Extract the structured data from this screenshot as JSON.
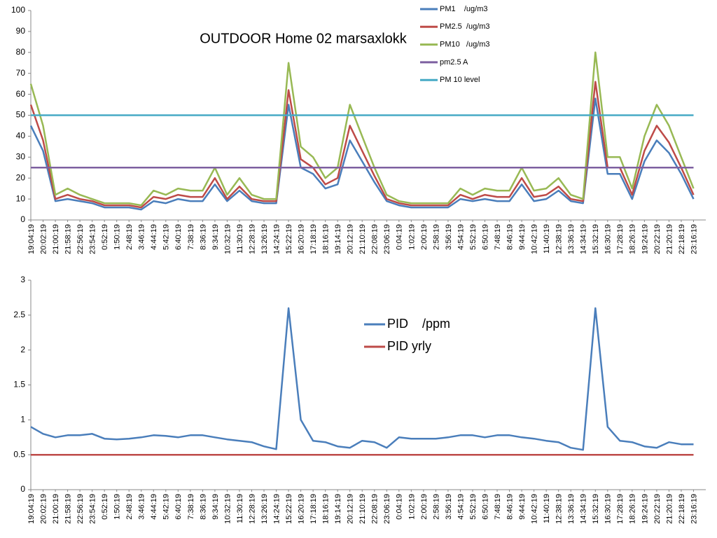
{
  "chart_data": [
    {
      "type": "line",
      "title": "OUTDOOR Home 02 marsaxlokk",
      "categories": [
        "19:04:19",
        "20:02:19",
        "21:00:19",
        "21:58:19",
        "22:56:19",
        "23:54:19",
        "0:52:19",
        "1:50:19",
        "2:48:19",
        "3:46:19",
        "4:44:19",
        "5:42:19",
        "6:40:19",
        "7:38:19",
        "8:36:19",
        "9:34:19",
        "10:32:19",
        "11:30:19",
        "12:28:19",
        "13:26:19",
        "14:24:19",
        "15:22:19",
        "16:20:19",
        "17:18:19",
        "18:16:19",
        "19:14:19",
        "20:12:19",
        "21:10:19",
        "22:08:19",
        "23:06:19",
        "0:04:19",
        "1:02:19",
        "2:00:19",
        "2:58:19",
        "3:56:19",
        "4:54:19",
        "5:52:19",
        "6:50:19",
        "7:48:19",
        "8:46:19",
        "9:44:19",
        "10:42:19",
        "11:40:19",
        "12:38:19",
        "13:36:19",
        "14:34:19",
        "15:32:19",
        "16:30:19",
        "17:28:19",
        "18:26:19",
        "19:24:19",
        "20:22:19",
        "21:20:19",
        "22:18:19",
        "23:16:19"
      ],
      "series": [
        {
          "name": "PM1    /ug/m3",
          "color": "#4a7ebb",
          "values": [
            45,
            33,
            9,
            10,
            9,
            8,
            6,
            6,
            6,
            5,
            9,
            8,
            10,
            9,
            9,
            17,
            9,
            14,
            9,
            8,
            8,
            55,
            25,
            22,
            15,
            17,
            38,
            28,
            18,
            9,
            7,
            6,
            6,
            6,
            6,
            10,
            9,
            10,
            9,
            9,
            17,
            9,
            10,
            14,
            9,
            8,
            58,
            22,
            22,
            10,
            28,
            38,
            32,
            22,
            10
          ]
        },
        {
          "name": "PM2.5  /ug/m3",
          "color": "#be4b48",
          "values": [
            55,
            38,
            10,
            12,
            10,
            9,
            7,
            7,
            7,
            6,
            11,
            10,
            12,
            11,
            11,
            20,
            10,
            16,
            10,
            9,
            9,
            62,
            29,
            25,
            17,
            20,
            45,
            33,
            21,
            10,
            8,
            7,
            7,
            7,
            7,
            12,
            10,
            12,
            11,
            11,
            20,
            11,
            12,
            16,
            10,
            9,
            66,
            25,
            25,
            12,
            33,
            45,
            37,
            25,
            12
          ]
        },
        {
          "name": "PM10   /ug/m3",
          "color": "#98b954",
          "values": [
            65,
            45,
            12,
            15,
            12,
            10,
            8,
            8,
            8,
            7,
            14,
            12,
            15,
            14,
            14,
            25,
            12,
            20,
            12,
            10,
            10,
            75,
            35,
            30,
            20,
            25,
            55,
            40,
            25,
            12,
            9,
            8,
            8,
            8,
            8,
            15,
            12,
            15,
            14,
            14,
            25,
            14,
            15,
            20,
            12,
            10,
            80,
            30,
            30,
            15,
            40,
            55,
            45,
            30,
            15
          ]
        },
        {
          "name": "pm2.5 A",
          "color": "#7d60a0",
          "values": [
            25,
            25,
            25,
            25,
            25,
            25,
            25,
            25,
            25,
            25,
            25,
            25,
            25,
            25,
            25,
            25,
            25,
            25,
            25,
            25,
            25,
            25,
            25,
            25,
            25,
            25,
            25,
            25,
            25,
            25,
            25,
            25,
            25,
            25,
            25,
            25,
            25,
            25,
            25,
            25,
            25,
            25,
            25,
            25,
            25,
            25,
            25,
            25,
            25,
            25,
            25,
            25,
            25,
            25,
            25
          ]
        },
        {
          "name": "PM 10 level",
          "color": "#46aac5",
          "values": [
            50,
            50,
            50,
            50,
            50,
            50,
            50,
            50,
            50,
            50,
            50,
            50,
            50,
            50,
            50,
            50,
            50,
            50,
            50,
            50,
            50,
            50,
            50,
            50,
            50,
            50,
            50,
            50,
            50,
            50,
            50,
            50,
            50,
            50,
            50,
            50,
            50,
            50,
            50,
            50,
            50,
            50,
            50,
            50,
            50,
            50,
            50,
            50,
            50,
            50,
            50,
            50,
            50,
            50,
            50
          ]
        }
      ],
      "ylim": [
        0,
        100
      ],
      "yticks": [
        0,
        10,
        20,
        30,
        40,
        50,
        60,
        70,
        80,
        90,
        100
      ]
    },
    {
      "type": "line",
      "categories": [
        "19:04:19",
        "20:02:19",
        "21:00:19",
        "21:58:19",
        "22:56:19",
        "23:54:19",
        "0:52:19",
        "1:50:19",
        "2:48:19",
        "3:46:19",
        "4:44:19",
        "5:42:19",
        "6:40:19",
        "7:38:19",
        "8:36:19",
        "9:34:19",
        "10:32:19",
        "11:30:19",
        "12:28:19",
        "13:26:19",
        "14:24:19",
        "15:22:19",
        "16:20:19",
        "17:18:19",
        "18:16:19",
        "19:14:19",
        "20:12:19",
        "21:10:19",
        "22:08:19",
        "23:06:19",
        "0:04:19",
        "1:02:19",
        "2:00:19",
        "2:58:19",
        "3:56:19",
        "4:54:19",
        "5:52:19",
        "6:50:19",
        "7:48:19",
        "8:46:19",
        "9:44:19",
        "10:42:19",
        "11:40:19",
        "12:38:19",
        "13:36:19",
        "14:34:19",
        "15:32:19",
        "16:30:19",
        "17:28:19",
        "18:26:19",
        "19:24:19",
        "20:22:19",
        "21:20:19",
        "22:18:19",
        "23:16:19"
      ],
      "series": [
        {
          "name": "PID    /ppm",
          "color": "#4a7ebb",
          "values": [
            0.9,
            0.8,
            0.75,
            0.78,
            0.78,
            0.8,
            0.73,
            0.72,
            0.73,
            0.75,
            0.78,
            0.77,
            0.75,
            0.78,
            0.78,
            0.75,
            0.72,
            0.7,
            0.68,
            0.62,
            0.58,
            2.6,
            1.0,
            0.7,
            0.68,
            0.62,
            0.6,
            0.7,
            0.68,
            0.6,
            0.75,
            0.73,
            0.73,
            0.73,
            0.75,
            0.78,
            0.78,
            0.75,
            0.78,
            0.78,
            0.75,
            0.73,
            0.7,
            0.68,
            0.6,
            0.57,
            2.6,
            0.9,
            0.7,
            0.68,
            0.62,
            0.6,
            0.68,
            0.65,
            0.65
          ]
        },
        {
          "name": "PID yrly",
          "color": "#be4b48",
          "values": [
            0.5,
            0.5,
            0.5,
            0.5,
            0.5,
            0.5,
            0.5,
            0.5,
            0.5,
            0.5,
            0.5,
            0.5,
            0.5,
            0.5,
            0.5,
            0.5,
            0.5,
            0.5,
            0.5,
            0.5,
            0.5,
            0.5,
            0.5,
            0.5,
            0.5,
            0.5,
            0.5,
            0.5,
            0.5,
            0.5,
            0.5,
            0.5,
            0.5,
            0.5,
            0.5,
            0.5,
            0.5,
            0.5,
            0.5,
            0.5,
            0.5,
            0.5,
            0.5,
            0.5,
            0.5,
            0.5,
            0.5,
            0.5,
            0.5,
            0.5,
            0.5,
            0.5,
            0.5,
            0.5,
            0.5
          ]
        }
      ],
      "ylim": [
        0,
        3
      ],
      "yticks": [
        0,
        0.5,
        1,
        1.5,
        2,
        2.5,
        3
      ]
    }
  ]
}
